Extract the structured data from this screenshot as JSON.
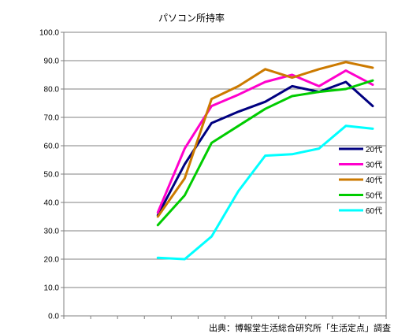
{
  "chart_data": {
    "type": "line",
    "title": "パソコン所持率",
    "xlabel": "",
    "ylabel": "",
    "x_count": 12,
    "ylim": [
      0,
      100
    ],
    "yticks": [
      "0.0",
      "10.0",
      "20.0",
      "30.0",
      "40.0",
      "50.0",
      "60.0",
      "70.0",
      "80.0",
      "90.0",
      "100.0"
    ],
    "grid": true,
    "legend_position": "right",
    "source_note": "出典：博報堂生活総合研究所「生活定点」調査",
    "series": [
      {
        "name": "20代",
        "color": "#000080",
        "values": [
          null,
          null,
          null,
          35.5,
          53.5,
          68.0,
          72.0,
          75.5,
          81.0,
          79.0,
          82.5,
          74.0
        ]
      },
      {
        "name": "30代",
        "color": "#ff00cc",
        "values": [
          null,
          null,
          null,
          36.5,
          59.0,
          74.0,
          78.0,
          82.5,
          85.0,
          81.0,
          86.5,
          81.5
        ]
      },
      {
        "name": "40代",
        "color": "#cc7a00",
        "values": [
          null,
          null,
          null,
          35.0,
          48.5,
          76.5,
          81.0,
          87.0,
          84.0,
          87.0,
          89.5,
          87.5
        ]
      },
      {
        "name": "50代",
        "color": "#00cc00",
        "values": [
          null,
          null,
          null,
          32.0,
          42.5,
          61.0,
          67.0,
          73.0,
          77.5,
          79.0,
          80.0,
          83.0
        ]
      },
      {
        "name": "60代",
        "color": "#00ffff",
        "values": [
          null,
          null,
          null,
          20.5,
          20.0,
          28.0,
          44.0,
          56.5,
          57.0,
          59.0,
          67.0,
          66.0
        ]
      }
    ]
  }
}
